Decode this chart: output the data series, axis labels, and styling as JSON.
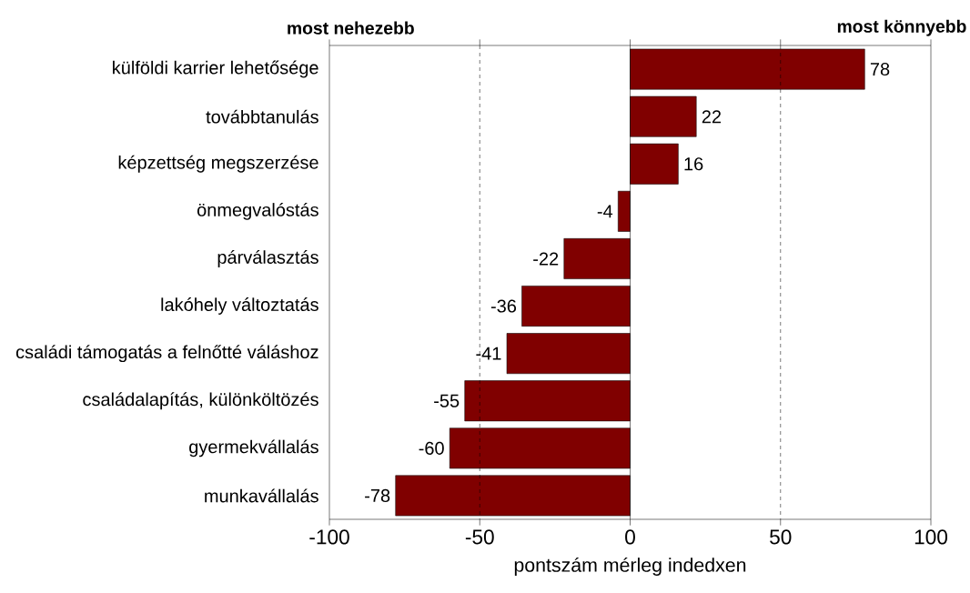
{
  "chart_data": {
    "type": "bar",
    "orientation": "horizontal",
    "categories": [
      "külföldi karrier lehetősége",
      "továbbtanulás",
      "képzettség megszerzése",
      "önmegvalóstás",
      "párválasztás",
      "lakóhely változtatás",
      "családi támogatás a felnőtté váláshoz",
      "családalapítás, különköltözés",
      "gyermekvállalás",
      "munkavállalás"
    ],
    "values": [
      78,
      22,
      16,
      -4,
      -22,
      -36,
      -41,
      -55,
      -60,
      -78
    ],
    "color": "#800000",
    "data_labels": true,
    "xlim": [
      -100,
      100
    ],
    "xticks": [
      -100,
      -50,
      0,
      50,
      100
    ],
    "xlabel": "pontszám mérleg indedxen",
    "ref_lines": [
      {
        "axis": "x",
        "value": -50,
        "line_style": "dashed"
      },
      {
        "axis": "x",
        "value": 50,
        "line_style": "dashed"
      },
      {
        "axis": "x",
        "value": 0,
        "line_style": "solid"
      }
    ],
    "annotations": [
      "most nehezebb",
      "most könnyebb"
    ],
    "grid": false
  }
}
